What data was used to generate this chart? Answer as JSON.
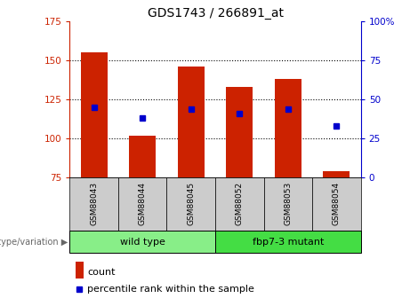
{
  "title": "GDS1743 / 266891_at",
  "samples": [
    "GSM88043",
    "GSM88044",
    "GSM88045",
    "GSM88052",
    "GSM88053",
    "GSM88054"
  ],
  "bar_values": [
    155,
    102,
    146,
    133,
    138,
    79
  ],
  "bar_base": 75,
  "blue_dot_y": [
    120,
    113,
    119,
    116,
    119,
    108
  ],
  "ylim_left": [
    75,
    175
  ],
  "ylim_right": [
    0,
    100
  ],
  "yticks_left": [
    75,
    100,
    125,
    150,
    175
  ],
  "yticks_right": [
    0,
    25,
    50,
    75,
    100
  ],
  "bar_color": "#cc2200",
  "dot_color": "#0000cc",
  "grid_color": "#000000",
  "groups": [
    {
      "label": "wild type",
      "indices": [
        0,
        1,
        2
      ],
      "color": "#88ee88"
    },
    {
      "label": "fbp7-3 mutant",
      "indices": [
        3,
        4,
        5
      ],
      "color": "#44dd44"
    }
  ],
  "group_label": "genotype/variation",
  "legend_count": "count",
  "legend_percentile": "percentile rank within the sample",
  "tick_bg_color": "#cccccc",
  "bar_width": 0.55,
  "figwidth": 4.61,
  "figheight": 3.45,
  "dpi": 100
}
